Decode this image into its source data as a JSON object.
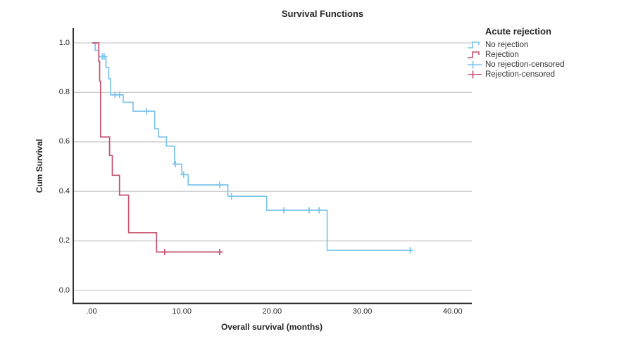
{
  "title": "Survival Functions",
  "y_axis": {
    "label": "Cum Survival",
    "tick_labels": [
      "1.0",
      "0.8",
      "0.6",
      "0.4",
      "0.2",
      "0.0"
    ],
    "tick_values": [
      1.0,
      0.8,
      0.6,
      0.4,
      0.2,
      0.0
    ]
  },
  "x_axis": {
    "label": "Overall survival (months)",
    "tick_labels": [
      ".00",
      "10.00",
      "20.00",
      "30.00",
      "40.00"
    ],
    "tick_values": [
      0,
      10,
      20,
      30,
      40
    ]
  },
  "legend": {
    "title": "Acute rejection",
    "items": [
      {
        "label": "No rejection",
        "swatch": "step",
        "series": 0
      },
      {
        "label": "Rejection",
        "swatch": "step",
        "series": 1
      },
      {
        "label": "No rejection-censored",
        "swatch": "censor",
        "series": 0
      },
      {
        "label": "Rejection-censored",
        "swatch": "censor",
        "series": 1
      }
    ]
  },
  "colors": {
    "grid": "#C9C9C9",
    "axis": "#1A1A1A",
    "text": "#262626",
    "no_rejection": "#7CC4EE",
    "rejection": "#C2516F"
  },
  "chart_data": {
    "type": "line",
    "subtype": "kaplan-meier-step",
    "title": "Survival Functions",
    "xlabel": "Overall survival (months)",
    "ylabel": "Cum Survival",
    "xlim": [
      -2.1,
      42.1
    ],
    "ylim": [
      -0.055,
      1.06
    ],
    "x_ticks": [
      0,
      10,
      20,
      30,
      40
    ],
    "y_ticks": [
      1.0,
      0.8,
      0.6,
      0.4,
      0.2,
      0.0
    ],
    "grid": "horizontal",
    "legend_position": "right",
    "series": [
      {
        "name": "No rejection",
        "color": "#7CC4EE",
        "steps": [
          [
            0.15,
            1.0
          ],
          [
            0.4,
            0.97
          ],
          [
            0.8,
            0.945
          ],
          [
            1.6,
            0.9
          ],
          [
            1.9,
            0.855
          ],
          [
            2.1,
            0.79
          ],
          [
            3.5,
            0.76
          ],
          [
            4.6,
            0.724
          ],
          [
            7.0,
            0.653
          ],
          [
            7.4,
            0.62
          ],
          [
            8.3,
            0.583
          ],
          [
            9.2,
            0.51
          ],
          [
            10.0,
            0.468
          ],
          [
            10.7,
            0.426
          ],
          [
            15.1,
            0.38
          ],
          [
            19.4,
            0.324
          ],
          [
            26.1,
            0.162
          ]
        ],
        "end_x": 35.5,
        "censored": [
          [
            1.2,
            0.945
          ],
          [
            1.4,
            0.945
          ],
          [
            2.6,
            0.79
          ],
          [
            3.1,
            0.79
          ],
          [
            6.1,
            0.724
          ],
          [
            9.3,
            0.51
          ],
          [
            10.2,
            0.468
          ],
          [
            14.2,
            0.426
          ],
          [
            15.5,
            0.38
          ],
          [
            21.3,
            0.324
          ],
          [
            24.1,
            0.324
          ],
          [
            25.2,
            0.324
          ],
          [
            35.3,
            0.162
          ]
        ]
      },
      {
        "name": "Rejection",
        "color": "#C2516F",
        "steps": [
          [
            0.05,
            1.0
          ],
          [
            0.8,
            0.925
          ],
          [
            0.9,
            0.845
          ],
          [
            1.0,
            0.62
          ],
          [
            2.0,
            0.545
          ],
          [
            2.3,
            0.465
          ],
          [
            3.1,
            0.385
          ],
          [
            4.1,
            0.233
          ],
          [
            7.2,
            0.155
          ]
        ],
        "end_x": 14.5,
        "censored": [
          [
            8.1,
            0.155
          ],
          [
            14.2,
            0.155
          ]
        ]
      }
    ]
  }
}
